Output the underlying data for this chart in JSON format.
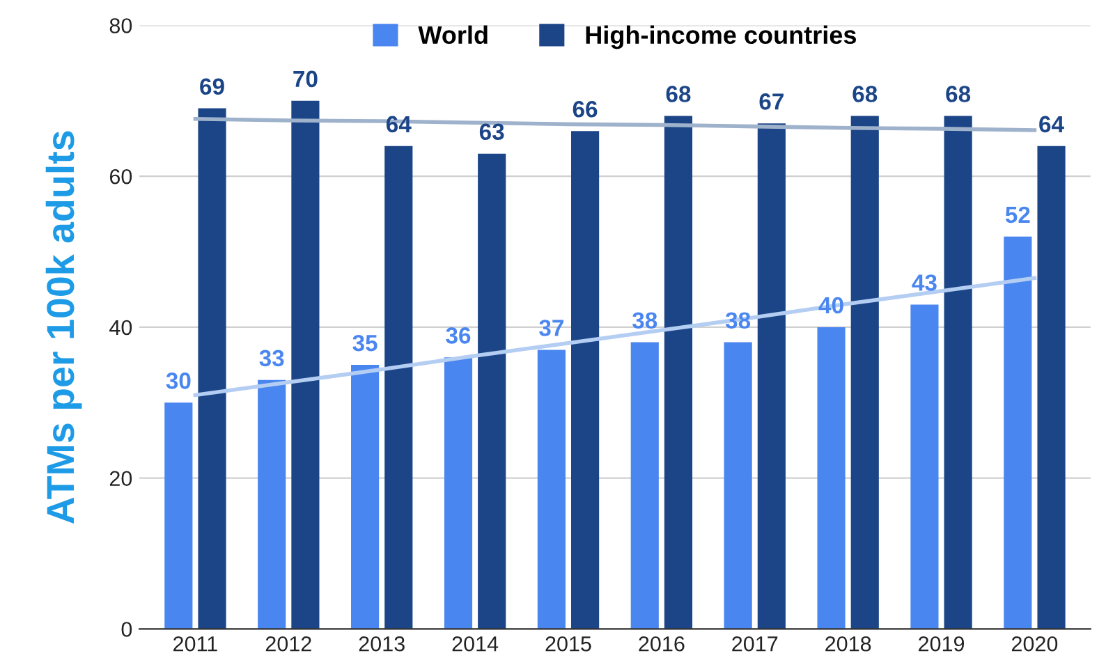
{
  "chart_data": {
    "type": "bar",
    "ylabel": "ATMs per 100k adults",
    "categories": [
      "2011",
      "2012",
      "2013",
      "2014",
      "2015",
      "2016",
      "2017",
      "2018",
      "2019",
      "2020"
    ],
    "series": [
      {
        "name": "World",
        "color": "#4a86f0",
        "values": [
          30,
          33,
          35,
          36,
          37,
          38,
          38,
          40,
          43,
          52
        ],
        "value_labels": [
          "30",
          "33",
          "35",
          "36",
          "37",
          "38",
          "38",
          "40",
          "43",
          "52"
        ]
      },
      {
        "name": "High-income countries",
        "color": "#1c4587",
        "values": [
          69,
          70,
          64,
          63,
          66,
          68,
          67,
          68,
          68,
          64
        ],
        "value_labels": [
          "69",
          "70",
          "64",
          "63",
          "66",
          "68",
          "67",
          "68",
          "68",
          "64"
        ]
      },
      {
        "type": "line",
        "color": "#b4cdf2",
        "values": [
          31,
          32.7,
          34.4,
          36.2,
          37.9,
          39.6,
          41.3,
          43.1,
          44.8,
          46.5
        ]
      },
      {
        "type": "line",
        "color": "#9fb2cc",
        "values": [
          67.6,
          67.4,
          67.3,
          67.1,
          66.9,
          66.8,
          66.6,
          66.4,
          66.3,
          66.1
        ]
      }
    ],
    "ylim": [
      0,
      80
    ],
    "yticks": [
      0,
      20,
      40,
      60,
      80
    ],
    "grid": "y",
    "legend": "top"
  }
}
